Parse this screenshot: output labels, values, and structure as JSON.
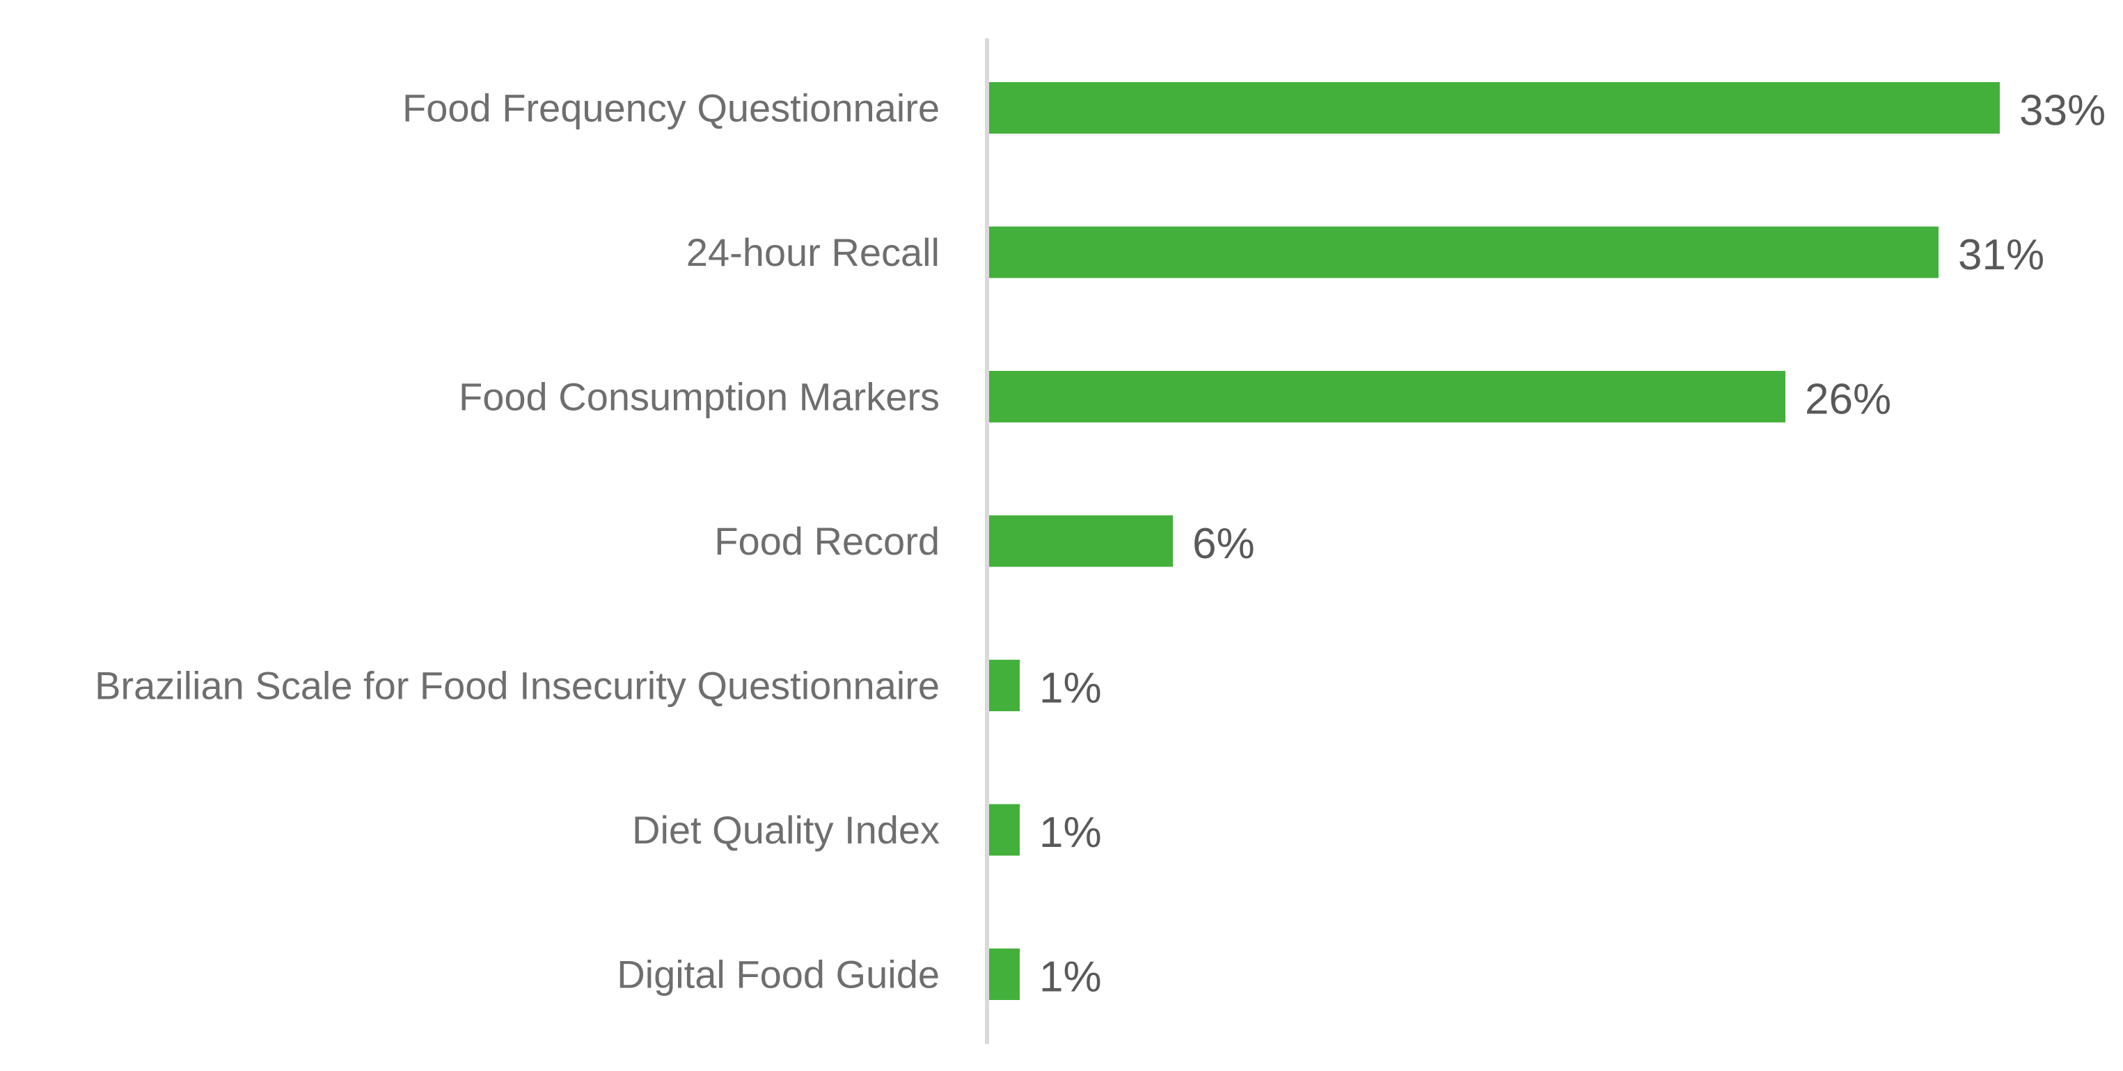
{
  "chart_data": {
    "type": "bar",
    "orientation": "horizontal",
    "categories": [
      "Food Frequency Questionnaire",
      "24-hour Recall",
      "Food Consumption Markers",
      "Food Record",
      "Brazilian Scale for Food Insecurity Questionnaire",
      "Diet Quality Index",
      "Digital Food Guide"
    ],
    "values": [
      33,
      31,
      26,
      6,
      1,
      1,
      1
    ],
    "value_labels": [
      "33%",
      "31%",
      "26%",
      "6%",
      "1%",
      "1%",
      "1%"
    ],
    "unit": "%",
    "title": "",
    "xlabel": "",
    "ylabel": "",
    "xlim": [
      0,
      33
    ],
    "grid": false,
    "legend": "none",
    "bar_color": "#43b03c",
    "axis_color": "#d9d9d9"
  }
}
